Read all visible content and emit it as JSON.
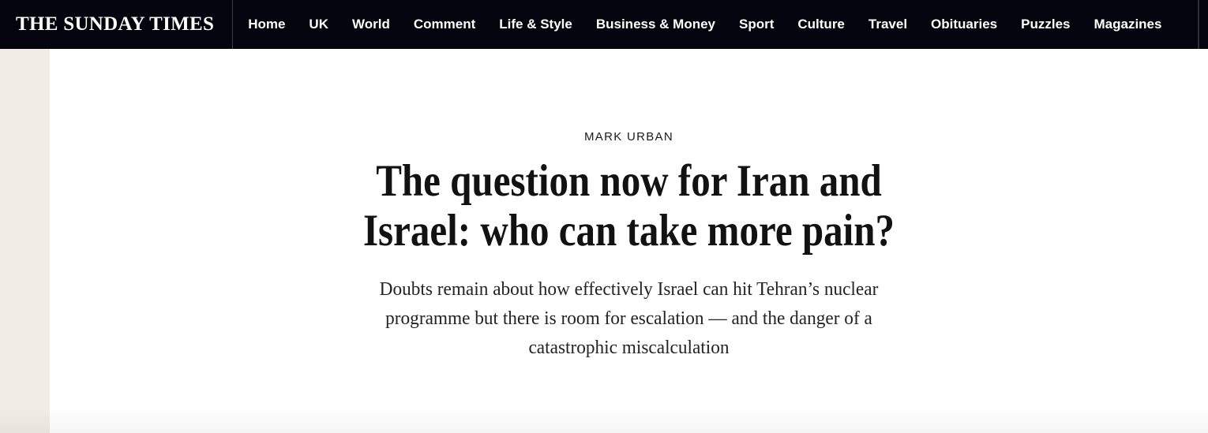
{
  "header": {
    "logo": "THE SUNDAY TIMES",
    "nav_items": [
      {
        "label": "Home"
      },
      {
        "label": "UK"
      },
      {
        "label": "World"
      },
      {
        "label": "Comment"
      },
      {
        "label": "Life & Style"
      },
      {
        "label": "Business & Money"
      },
      {
        "label": "Sport"
      },
      {
        "label": "Culture"
      },
      {
        "label": "Travel"
      },
      {
        "label": "Obituaries"
      },
      {
        "label": "Puzzles"
      },
      {
        "label": "Magazines"
      }
    ]
  },
  "article": {
    "author": "MARK URBAN",
    "headline": "The question now for Iran and Israel: who can take more pain?",
    "headline_lines": [
      "The question now for Iran and",
      "Israel: who can take more pain?"
    ],
    "standfirst": "Doubts remain about how effectively Israel can hit Tehran’s nuclear programme but there is room for escalation — and the danger of a catastrophic miscalculation",
    "standfirst_lines": [
      "Doubts remain about how effectively Israel can hit Tehran’s nuclear",
      "programme but there is room for escalation — and the danger of a",
      "catastrophic miscalculation"
    ]
  },
  "colors": {
    "header_bg": "#04040e",
    "nav_text": "#ffffff",
    "left_strip": "#f2ece6",
    "headline_text": "#121212",
    "standfirst_text": "#232323"
  }
}
